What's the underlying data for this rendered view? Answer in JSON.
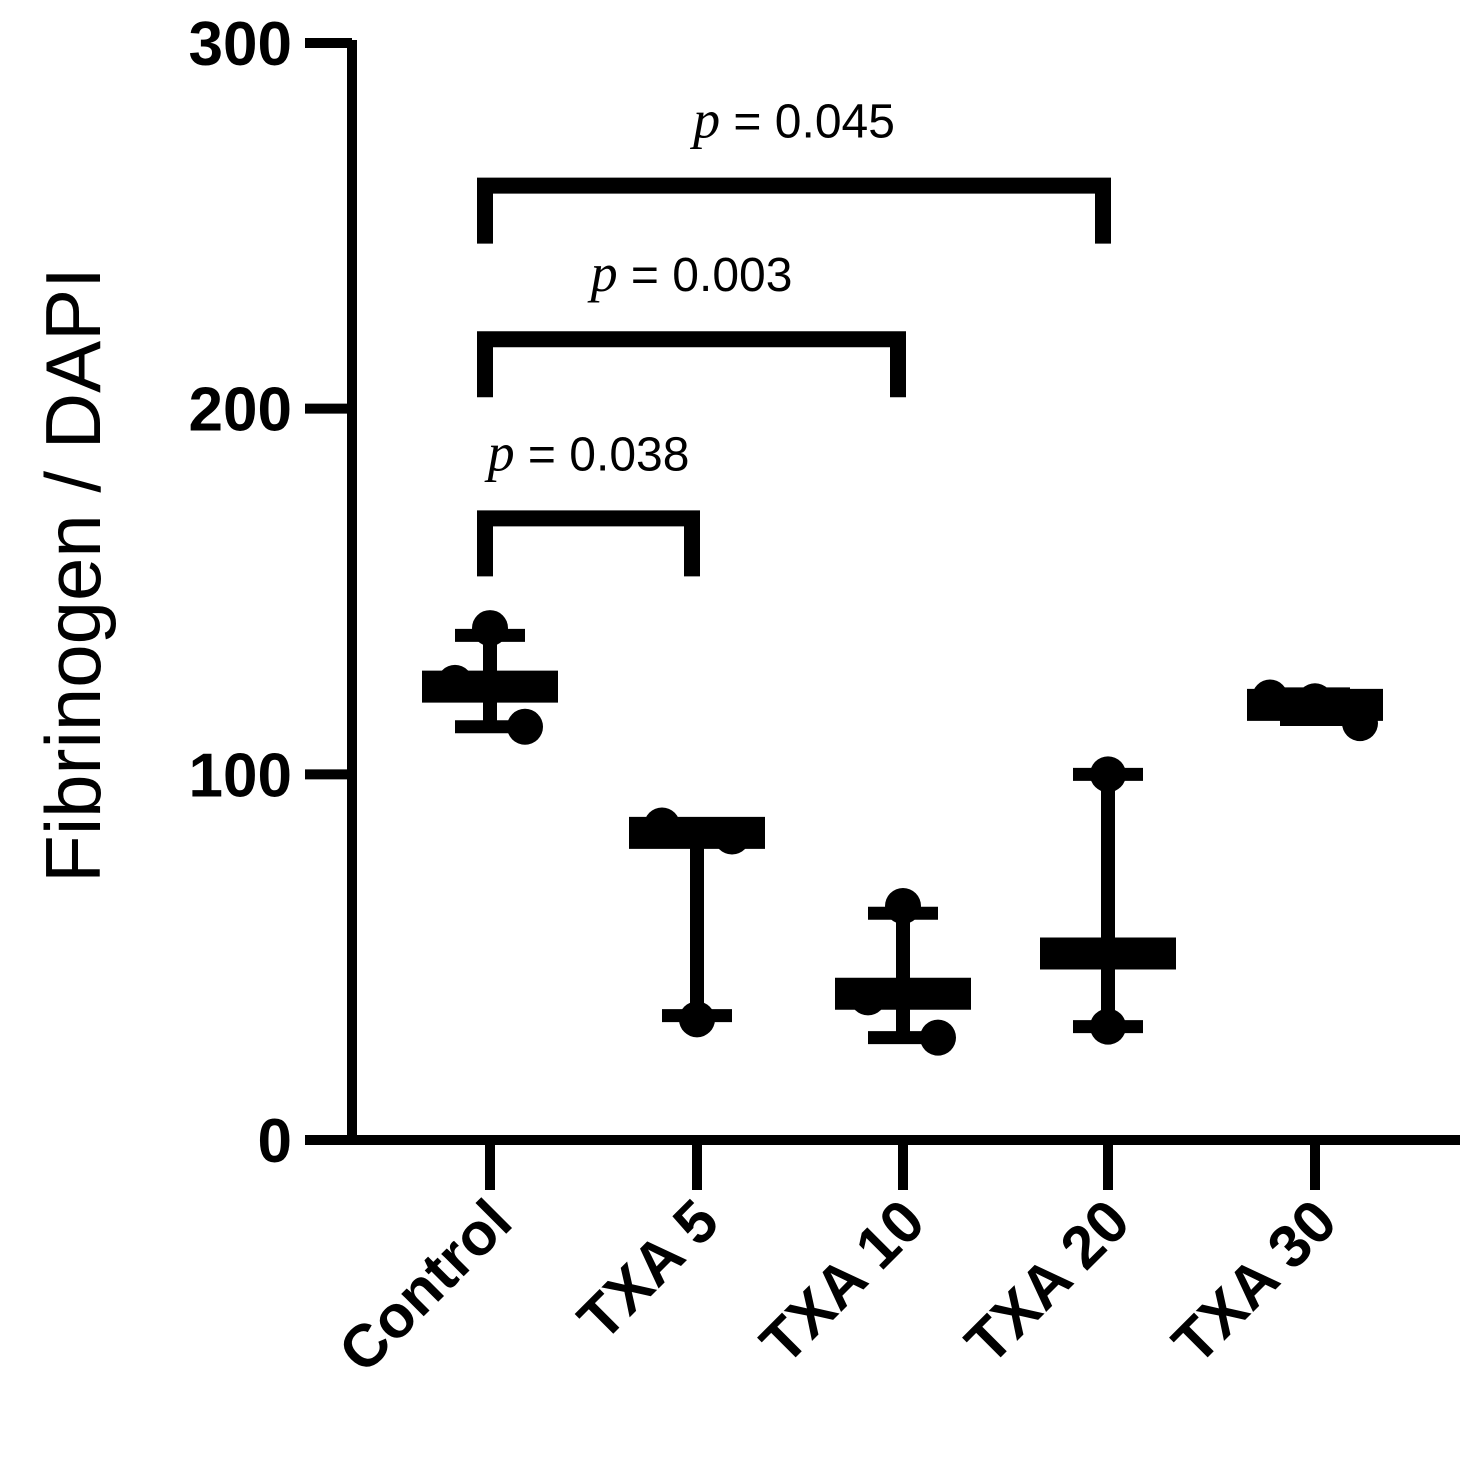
{
  "chart_data": {
    "type": "scatter",
    "title": "",
    "xlabel": "",
    "ylabel": "Fibrinogen / DAPI",
    "ylim": [
      0,
      300
    ],
    "yticks": [
      "0",
      "100",
      "200",
      "300"
    ],
    "categories": [
      "Control",
      "TXA 5",
      "TXA 10",
      "TXA 20",
      "TXA 30"
    ],
    "groups": [
      {
        "name": "Control",
        "points": [
          140,
          125,
          113
        ],
        "mean": 124,
        "sd_low": 113,
        "sd_high": 138
      },
      {
        "name": "TXA 5",
        "points": [
          86,
          83,
          33
        ],
        "mean": 84,
        "sd_low": 34,
        "sd_high": 84
      },
      {
        "name": "TXA 10",
        "points": [
          64,
          39,
          28
        ],
        "mean": 40,
        "sd_low": 28,
        "sd_high": 62
      },
      {
        "name": "TXA 20",
        "points": [
          100,
          31
        ],
        "mean": 51,
        "sd_low": 31,
        "sd_high": 100
      },
      {
        "name": "TXA 30",
        "points": [
          121,
          120,
          114
        ],
        "mean": 119,
        "sd_low": 115,
        "sd_high": 122
      }
    ],
    "comparisons": [
      {
        "from": "Control",
        "to": "TXA 5",
        "p_symbol": "p",
        "p_text": " = 0.038",
        "bar_y": 170
      },
      {
        "from": "Control",
        "to": "TXA 10",
        "p_symbol": "p",
        "p_text": " = 0.003",
        "bar_y": 219
      },
      {
        "from": "Control",
        "to": "TXA 20",
        "p_symbol": "p",
        "p_text": " = 0.045",
        "bar_y": 261
      }
    ],
    "grid": false,
    "legend": "none"
  }
}
